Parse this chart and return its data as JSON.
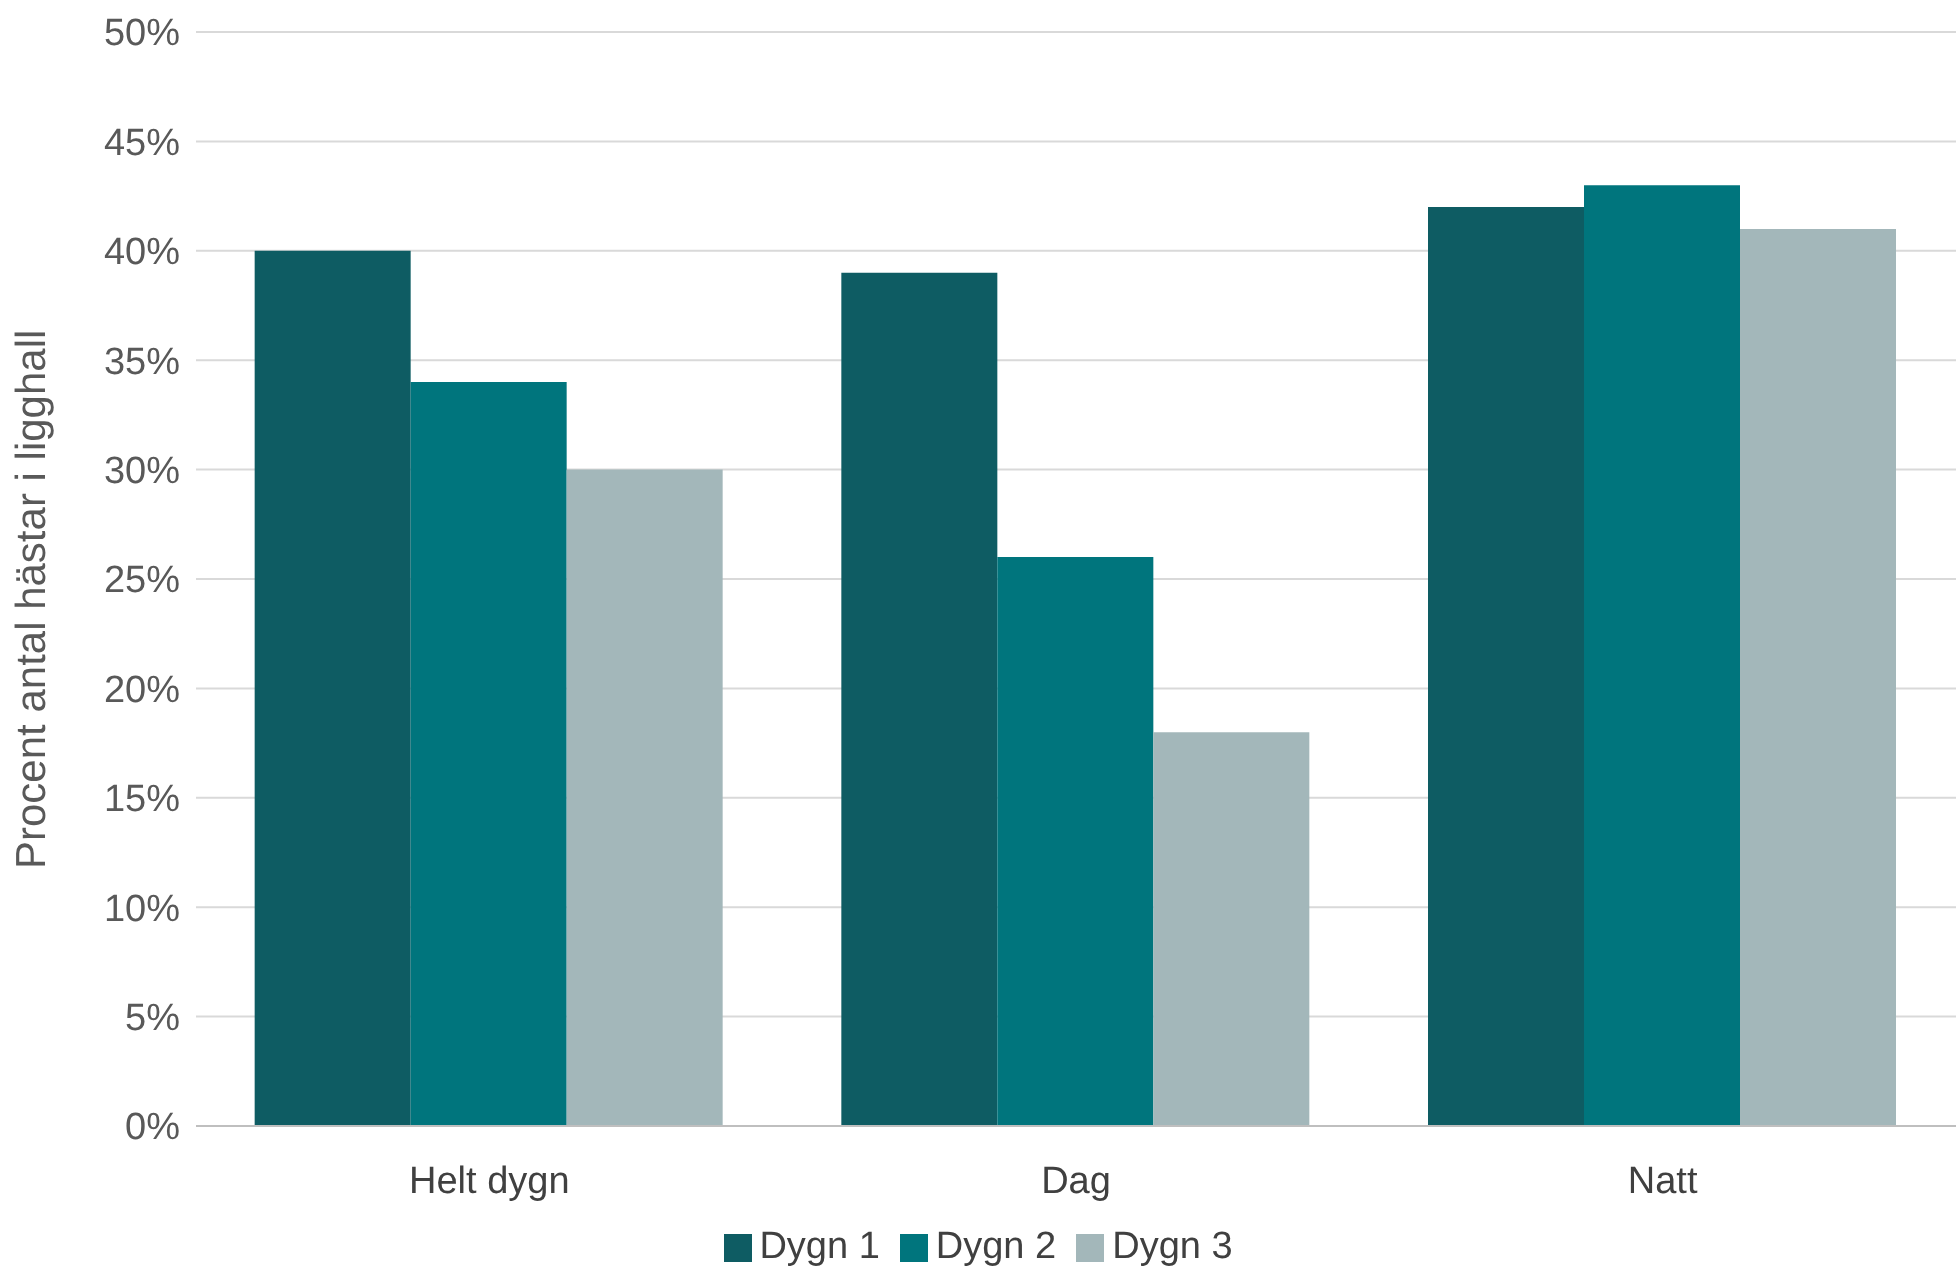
{
  "chart_data": {
    "type": "bar",
    "ylabel": "Procent antal hästar i ligghall",
    "categories": [
      "Helt dygn",
      "Dag",
      "Natt"
    ],
    "series": [
      {
        "name": "Dygn 1",
        "color": "#0e5c63",
        "values": [
          40,
          39,
          42
        ]
      },
      {
        "name": "Dygn 2",
        "color": "#00757d",
        "values": [
          34,
          26,
          43
        ]
      },
      {
        "name": "Dygn 3",
        "color": "#a3b7ba",
        "values": [
          30,
          18,
          41
        ]
      }
    ],
    "ylim": [
      0,
      50
    ],
    "yticks": [
      {
        "value": 0,
        "label": "0%"
      },
      {
        "value": 5,
        "label": "5%"
      },
      {
        "value": 10,
        "label": "10%"
      },
      {
        "value": 15,
        "label": "15%"
      },
      {
        "value": 20,
        "label": "20%"
      },
      {
        "value": 25,
        "label": "25%"
      },
      {
        "value": 30,
        "label": "30%"
      },
      {
        "value": 35,
        "label": "35%"
      },
      {
        "value": 40,
        "label": "40%"
      },
      {
        "value": 45,
        "label": "45%"
      },
      {
        "value": 50,
        "label": "50%"
      }
    ],
    "grid": "y",
    "legend": "bottom"
  }
}
